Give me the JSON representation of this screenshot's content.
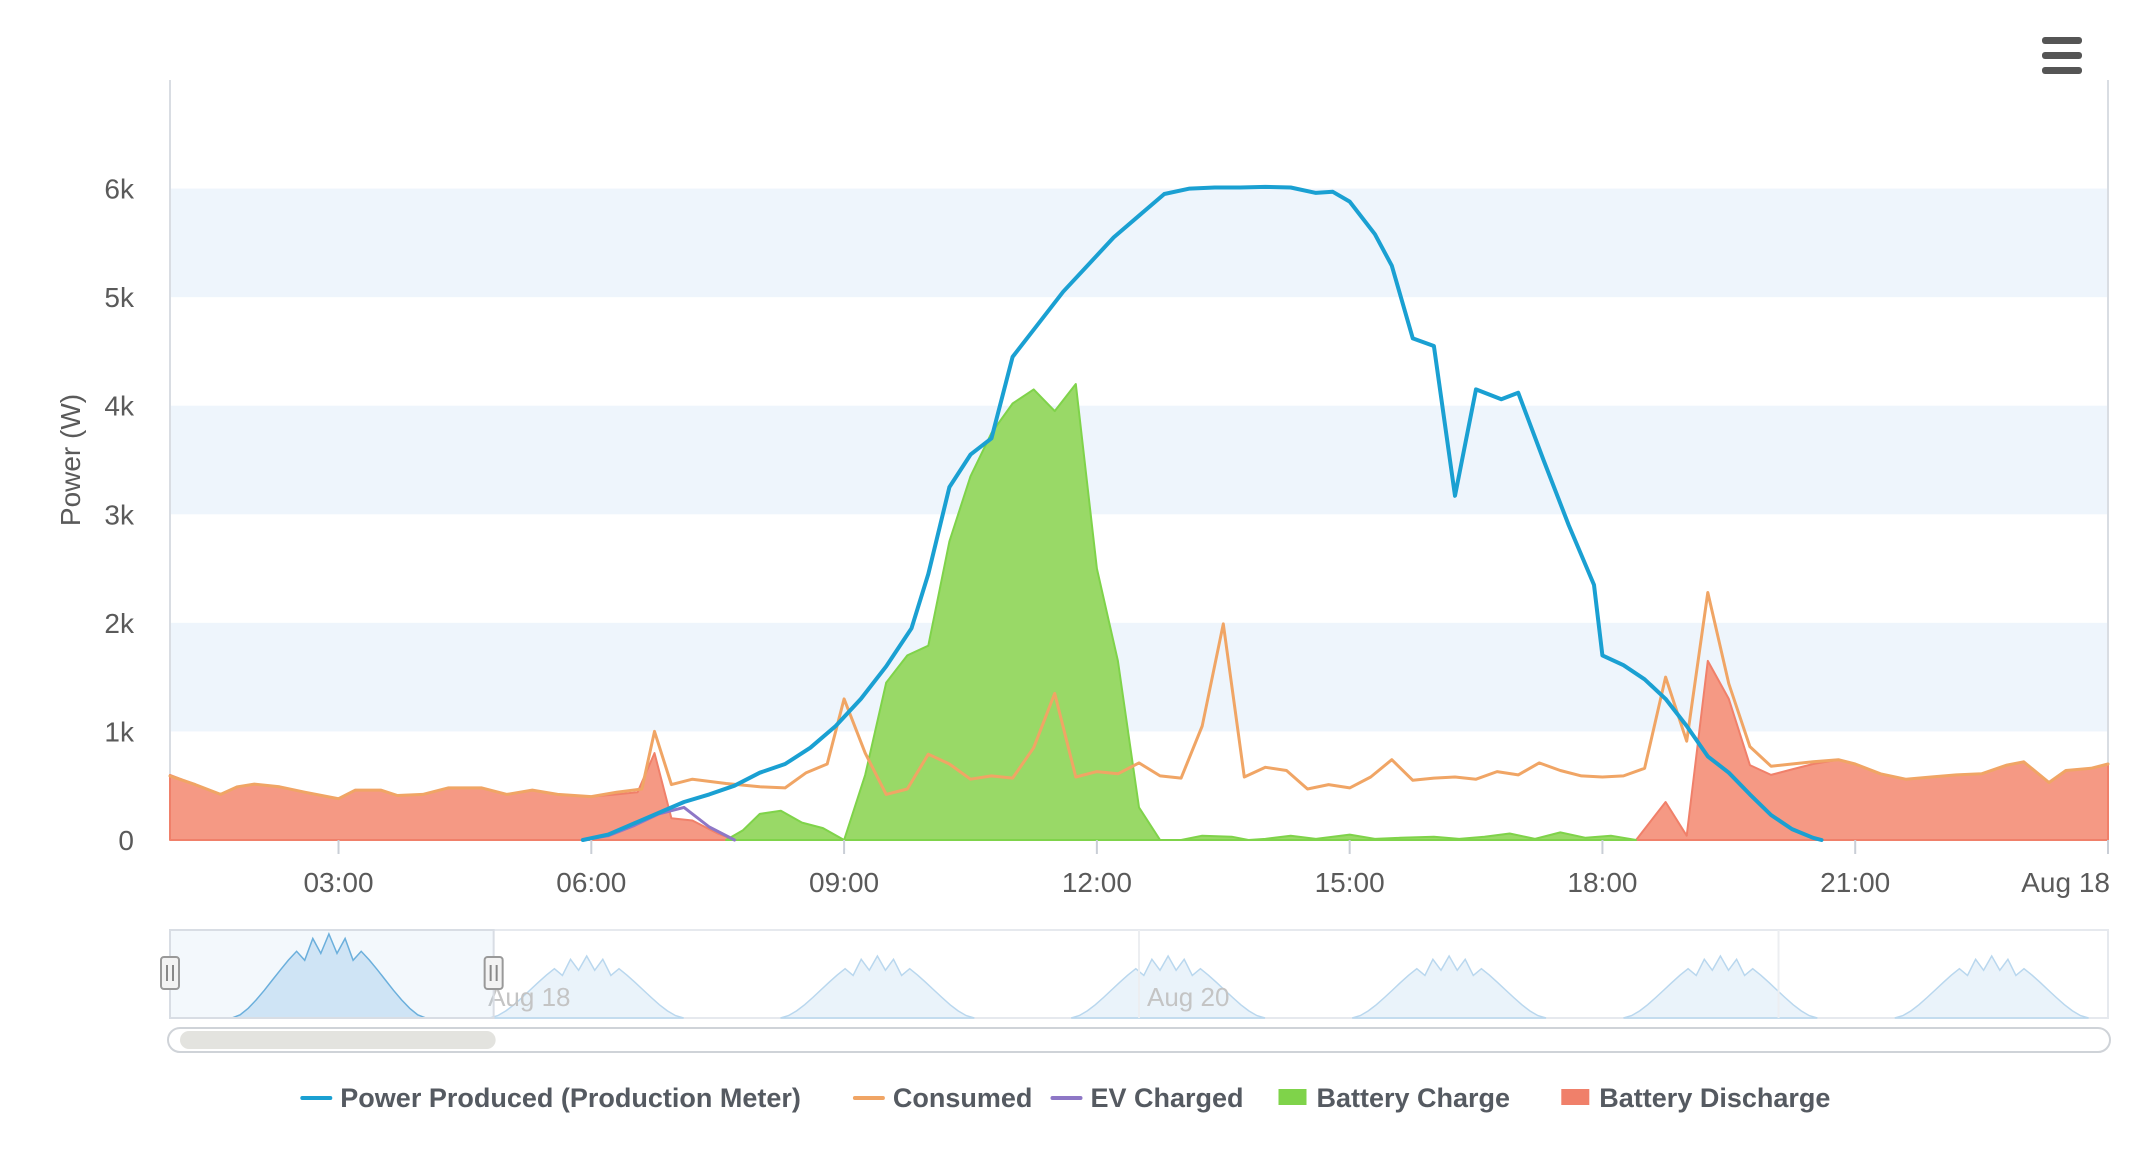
{
  "menu": {
    "icon": "hamburger-menu-icon"
  },
  "chart_data": {
    "type": "area",
    "title": "",
    "ylabel": "Power (W)",
    "xlabel": "",
    "x_unit": "hours (Aug 17, 00:00 = 0)",
    "xlim": [
      1.0,
      24.0
    ],
    "ylim": [
      0,
      7000
    ],
    "yticks": [
      {
        "value": 0,
        "label": "0"
      },
      {
        "value": 1000,
        "label": "1k"
      },
      {
        "value": 2000,
        "label": "2k"
      },
      {
        "value": 3000,
        "label": "3k"
      },
      {
        "value": 4000,
        "label": "4k"
      },
      {
        "value": 5000,
        "label": "5k"
      },
      {
        "value": 6000,
        "label": "6k"
      }
    ],
    "xticks": [
      {
        "value": 3,
        "label": "03:00"
      },
      {
        "value": 6,
        "label": "06:00"
      },
      {
        "value": 9,
        "label": "09:00"
      },
      {
        "value": 12,
        "label": "12:00"
      },
      {
        "value": 15,
        "label": "15:00"
      },
      {
        "value": 18,
        "label": "18:00"
      },
      {
        "value": 21,
        "label": "21:00"
      },
      {
        "value": 24,
        "label": "Aug 18"
      }
    ],
    "banded_background": true,
    "legend_position": "bottom-center",
    "series": [
      {
        "name": "Power Produced (Production Meter)",
        "kind": "line",
        "color": "#1aa0d2",
        "points": [
          [
            5.9,
            0
          ],
          [
            6.2,
            50
          ],
          [
            6.5,
            150
          ],
          [
            6.8,
            250
          ],
          [
            7.1,
            350
          ],
          [
            7.4,
            420
          ],
          [
            7.7,
            500
          ],
          [
            8.0,
            620
          ],
          [
            8.3,
            700
          ],
          [
            8.6,
            850
          ],
          [
            8.9,
            1050
          ],
          [
            9.2,
            1300
          ],
          [
            9.5,
            1600
          ],
          [
            9.8,
            1950
          ],
          [
            10.0,
            2450
          ],
          [
            10.25,
            3250
          ],
          [
            10.5,
            3550
          ],
          [
            10.75,
            3700
          ],
          [
            11.0,
            4450
          ],
          [
            11.3,
            4750
          ],
          [
            11.6,
            5050
          ],
          [
            11.9,
            5300
          ],
          [
            12.2,
            5550
          ],
          [
            12.5,
            5750
          ],
          [
            12.8,
            5950
          ],
          [
            13.1,
            6000
          ],
          [
            13.4,
            6010
          ],
          [
            13.7,
            6010
          ],
          [
            14.0,
            6015
          ],
          [
            14.3,
            6010
          ],
          [
            14.6,
            5960
          ],
          [
            14.8,
            5970
          ],
          [
            15.0,
            5880
          ],
          [
            15.3,
            5580
          ],
          [
            15.5,
            5290
          ],
          [
            15.75,
            4620
          ],
          [
            16.0,
            4550
          ],
          [
            16.25,
            3170
          ],
          [
            16.5,
            4150
          ],
          [
            16.8,
            4060
          ],
          [
            17.0,
            4120
          ],
          [
            17.3,
            3500
          ],
          [
            17.6,
            2900
          ],
          [
            17.9,
            2350
          ],
          [
            18.0,
            1700
          ],
          [
            18.25,
            1610
          ],
          [
            18.5,
            1480
          ],
          [
            18.75,
            1300
          ],
          [
            19.0,
            1050
          ],
          [
            19.25,
            770
          ],
          [
            19.5,
            620
          ],
          [
            19.75,
            420
          ],
          [
            20.0,
            230
          ],
          [
            20.25,
            100
          ],
          [
            20.5,
            20
          ],
          [
            20.6,
            0
          ]
        ]
      },
      {
        "name": "Consumed",
        "kind": "line",
        "color": "#f0a565",
        "points": [
          [
            1.0,
            590
          ],
          [
            1.3,
            510
          ],
          [
            1.6,
            420
          ],
          [
            1.8,
            490
          ],
          [
            2.0,
            515
          ],
          [
            2.3,
            490
          ],
          [
            2.6,
            440
          ],
          [
            2.8,
            410
          ],
          [
            3.0,
            380
          ],
          [
            3.2,
            460
          ],
          [
            3.5,
            460
          ],
          [
            3.7,
            410
          ],
          [
            4.0,
            420
          ],
          [
            4.3,
            480
          ],
          [
            4.7,
            480
          ],
          [
            5.0,
            420
          ],
          [
            5.3,
            460
          ],
          [
            5.6,
            420
          ],
          [
            6.0,
            400
          ],
          [
            6.3,
            440
          ],
          [
            6.6,
            470
          ],
          [
            6.75,
            1000
          ],
          [
            6.95,
            510
          ],
          [
            7.2,
            560
          ],
          [
            7.6,
            520
          ],
          [
            8.0,
            490
          ],
          [
            8.3,
            480
          ],
          [
            8.55,
            620
          ],
          [
            8.8,
            700
          ],
          [
            9.0,
            1300
          ],
          [
            9.25,
            800
          ],
          [
            9.5,
            420
          ],
          [
            9.75,
            470
          ],
          [
            10.0,
            790
          ],
          [
            10.25,
            700
          ],
          [
            10.5,
            560
          ],
          [
            10.75,
            590
          ],
          [
            11.0,
            570
          ],
          [
            11.25,
            850
          ],
          [
            11.5,
            1350
          ],
          [
            11.75,
            580
          ],
          [
            12.0,
            630
          ],
          [
            12.25,
            610
          ],
          [
            12.5,
            710
          ],
          [
            12.75,
            590
          ],
          [
            13.0,
            570
          ],
          [
            13.25,
            1050
          ],
          [
            13.5,
            1990
          ],
          [
            13.75,
            580
          ],
          [
            14.0,
            670
          ],
          [
            14.25,
            640
          ],
          [
            14.5,
            470
          ],
          [
            14.75,
            510
          ],
          [
            15.0,
            480
          ],
          [
            15.25,
            580
          ],
          [
            15.5,
            740
          ],
          [
            15.75,
            550
          ],
          [
            16.0,
            570
          ],
          [
            16.25,
            580
          ],
          [
            16.5,
            560
          ],
          [
            16.75,
            630
          ],
          [
            17.0,
            600
          ],
          [
            17.25,
            710
          ],
          [
            17.5,
            640
          ],
          [
            17.75,
            590
          ],
          [
            18.0,
            580
          ],
          [
            18.25,
            590
          ],
          [
            18.5,
            660
          ],
          [
            18.75,
            1500
          ],
          [
            19.0,
            910
          ],
          [
            19.25,
            2280
          ],
          [
            19.5,
            1440
          ],
          [
            19.75,
            860
          ],
          [
            20.0,
            680
          ],
          [
            20.25,
            700
          ],
          [
            20.5,
            720
          ],
          [
            20.8,
            740
          ],
          [
            21.0,
            700
          ],
          [
            21.3,
            610
          ],
          [
            21.6,
            560
          ],
          [
            21.9,
            580
          ],
          [
            22.2,
            600
          ],
          [
            22.5,
            610
          ],
          [
            22.8,
            690
          ],
          [
            23.0,
            720
          ],
          [
            23.3,
            530
          ],
          [
            23.5,
            640
          ],
          [
            23.8,
            660
          ],
          [
            24.0,
            700
          ]
        ]
      },
      {
        "name": "EV Charged",
        "kind": "line",
        "color": "#8e77c6",
        "points": [
          [
            5.9,
            0
          ],
          [
            6.2,
            40
          ],
          [
            6.5,
            130
          ],
          [
            6.8,
            240
          ],
          [
            7.1,
            300
          ],
          [
            7.4,
            120
          ],
          [
            7.7,
            0
          ]
        ]
      },
      {
        "name": "Battery Charge",
        "kind": "area",
        "color": "#7fd34a",
        "fill": "#94d75f",
        "points": [
          [
            7.6,
            0
          ],
          [
            7.8,
            90
          ],
          [
            8.0,
            240
          ],
          [
            8.25,
            270
          ],
          [
            8.5,
            160
          ],
          [
            8.75,
            110
          ],
          [
            9.0,
            0
          ],
          [
            9.25,
            600
          ],
          [
            9.5,
            1450
          ],
          [
            9.75,
            1700
          ],
          [
            10.0,
            1790
          ],
          [
            10.25,
            2750
          ],
          [
            10.5,
            3350
          ],
          [
            10.75,
            3750
          ],
          [
            11.0,
            4020
          ],
          [
            11.25,
            4150
          ],
          [
            11.5,
            3950
          ],
          [
            11.75,
            4200
          ],
          [
            12.0,
            2500
          ],
          [
            12.25,
            1650
          ],
          [
            12.5,
            300
          ],
          [
            12.75,
            0
          ],
          [
            13.0,
            0
          ],
          [
            13.25,
            40
          ],
          [
            13.6,
            30
          ],
          [
            13.8,
            0
          ],
          [
            14.0,
            10
          ],
          [
            14.3,
            40
          ],
          [
            14.6,
            10
          ],
          [
            15.0,
            50
          ],
          [
            15.3,
            10
          ],
          [
            15.6,
            20
          ],
          [
            16.0,
            30
          ],
          [
            16.3,
            10
          ],
          [
            16.6,
            30
          ],
          [
            16.9,
            60
          ],
          [
            17.2,
            10
          ],
          [
            17.5,
            70
          ],
          [
            17.8,
            20
          ],
          [
            18.1,
            40
          ],
          [
            18.4,
            0
          ]
        ]
      },
      {
        "name": "Battery Discharge",
        "kind": "area",
        "color": "#f0806a",
        "fill": "#f4937d",
        "points": [
          [
            1.0,
            600
          ],
          [
            1.3,
            510
          ],
          [
            1.6,
            420
          ],
          [
            1.8,
            490
          ],
          [
            2.0,
            515
          ],
          [
            2.3,
            490
          ],
          [
            2.6,
            440
          ],
          [
            2.8,
            410
          ],
          [
            3.0,
            380
          ],
          [
            3.2,
            460
          ],
          [
            3.5,
            460
          ],
          [
            3.7,
            410
          ],
          [
            4.0,
            420
          ],
          [
            4.3,
            480
          ],
          [
            4.7,
            480
          ],
          [
            5.0,
            420
          ],
          [
            5.3,
            460
          ],
          [
            5.6,
            420
          ],
          [
            6.0,
            400
          ],
          [
            6.3,
            420
          ],
          [
            6.55,
            440
          ],
          [
            6.75,
            800
          ],
          [
            6.95,
            200
          ],
          [
            7.2,
            180
          ],
          [
            7.5,
            60
          ],
          [
            7.7,
            0
          ],
          [
            18.4,
            0
          ],
          [
            18.75,
            350
          ],
          [
            19.0,
            40
          ],
          [
            19.25,
            1650
          ],
          [
            19.5,
            1300
          ],
          [
            19.75,
            690
          ],
          [
            20.0,
            600
          ],
          [
            20.25,
            650
          ],
          [
            20.5,
            700
          ],
          [
            20.8,
            740
          ],
          [
            21.0,
            700
          ],
          [
            21.3,
            610
          ],
          [
            21.6,
            560
          ],
          [
            21.9,
            580
          ],
          [
            22.2,
            600
          ],
          [
            22.5,
            610
          ],
          [
            22.8,
            690
          ],
          [
            23.0,
            720
          ],
          [
            23.3,
            530
          ],
          [
            23.5,
            640
          ],
          [
            23.8,
            660
          ],
          [
            24.0,
            700
          ]
        ]
      }
    ],
    "navigator": {
      "labels": [
        {
          "value": 0.16,
          "label": "Aug 18"
        },
        {
          "value": 0.5,
          "label": "Aug 20"
        }
      ],
      "selection": [
        0.0,
        0.167
      ]
    }
  },
  "legend": {
    "items": [
      {
        "label": "Power Produced (Production Meter)",
        "color": "#1aa0d2",
        "symbol": "line"
      },
      {
        "label": "Consumed",
        "color": "#f0a565",
        "symbol": "line"
      },
      {
        "label": "EV Charged",
        "color": "#8e77c6",
        "symbol": "line"
      },
      {
        "label": "Battery Charge",
        "color": "#7fd34a",
        "symbol": "area"
      },
      {
        "label": "Battery Discharge",
        "color": "#f0806a",
        "symbol": "area"
      }
    ]
  }
}
